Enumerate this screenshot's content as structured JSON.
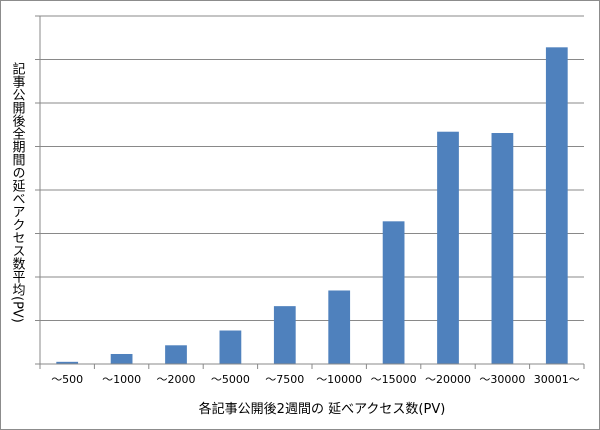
{
  "chart_data": {
    "type": "bar",
    "title": "",
    "xlabel": "各記事公開後2週間の 延べアクセス数(PV)",
    "ylabel": "記事公開後全期間の延べアクセス数平均(PV)",
    "categories": [
      "〜500",
      "〜1000",
      "〜2000",
      "〜5000",
      "〜7500",
      "〜10000",
      "〜15000",
      "〜20000",
      "〜30000",
      "30001〜"
    ],
    "values": [
      0.5,
      2.3,
      4.3,
      7.7,
      13.3,
      16.9,
      32.8,
      53.4,
      53.1,
      72.8
    ],
    "ylim": [
      0,
      80
    ],
    "yticks": [
      0,
      10,
      20,
      30,
      40,
      50,
      60,
      70,
      80
    ],
    "ytick_labels_visible": false,
    "grid": true,
    "legend": "none",
    "bar_color": "#4f81bd",
    "grid_color": "#898989"
  }
}
